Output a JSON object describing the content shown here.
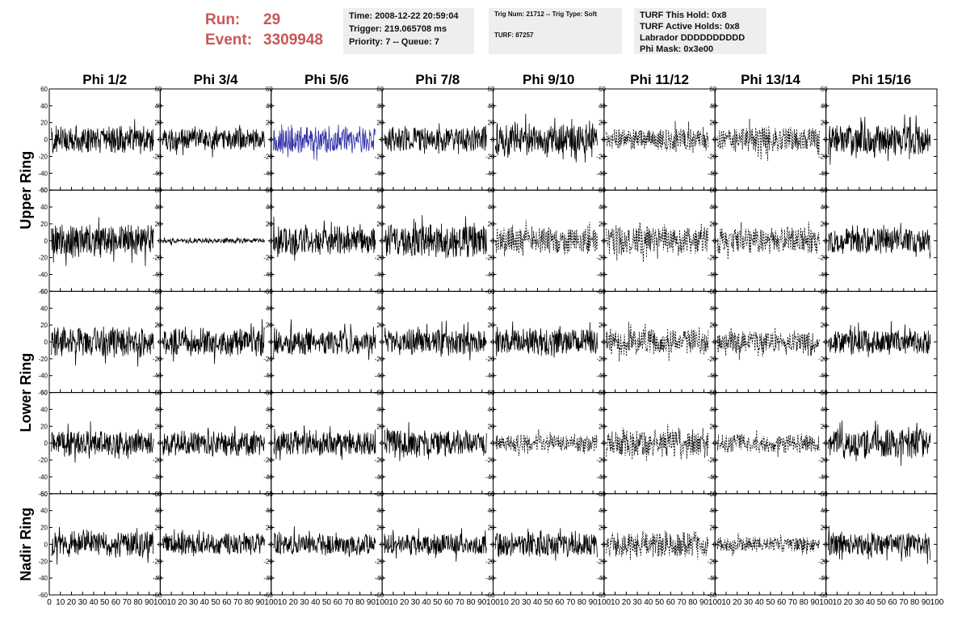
{
  "header": {
    "run_label": "Run:",
    "run_value": "29",
    "event_label": "Event:",
    "event_value": "3309948",
    "time_lines": [
      "Time: 2008-12-22 20:59:04",
      "Trigger: 219.065708 ms",
      "Priority: 7 -- Queue: 7"
    ],
    "trig_lines": [
      "Trig Num: 21712 -- Trig Type: Soft",
      "TURF: 87257"
    ],
    "turf_lines": [
      "TURF This Hold: 0x8",
      "TURF Active Holds: 0x8",
      "Labrador DDDDDDDDDD",
      "Phi Mask: 0x3e00"
    ],
    "colors": {
      "run_text": "#cc5555",
      "pane_bg": "#eeeeee",
      "highlight_trace": "#3333aa"
    }
  },
  "chart_data": {
    "type": "line",
    "columns": [
      "Phi 1/2",
      "Phi 3/4",
      "Phi 5/6",
      "Phi 7/8",
      "Phi 9/10",
      "Phi 11/12",
      "Phi 13/14",
      "Phi 15/16"
    ],
    "ring_labels": [
      "Upper Ring",
      "Lower Ring",
      "Nadir Ring"
    ],
    "subrows": 5,
    "xlim": [
      0,
      100
    ],
    "ylim": [
      -60,
      60
    ],
    "x_ticks": [
      0,
      10,
      20,
      30,
      40,
      50,
      60,
      70,
      80,
      90,
      100
    ],
    "y_ticks": [
      -60,
      -40,
      -20,
      0,
      20,
      40,
      60
    ],
    "highlighted_panel": {
      "row": 0,
      "col": 2,
      "color": "#3333aa"
    },
    "dashed_panels": [
      [
        0,
        5
      ],
      [
        0,
        6
      ],
      [
        1,
        4
      ],
      [
        1,
        5
      ],
      [
        1,
        6
      ],
      [
        2,
        5
      ],
      [
        2,
        6
      ],
      [
        3,
        4
      ],
      [
        3,
        5
      ],
      [
        3,
        6
      ],
      [
        4,
        5
      ],
      [
        4,
        6
      ]
    ],
    "amplitudes": [
      [
        15,
        12,
        15,
        14,
        18,
        12,
        14,
        16
      ],
      [
        18,
        3,
        16,
        18,
        14,
        16,
        14,
        14
      ],
      [
        16,
        15,
        14,
        14,
        15,
        14,
        12,
        14
      ],
      [
        14,
        14,
        14,
        15,
        10,
        16,
        10,
        16
      ],
      [
        14,
        12,
        12,
        12,
        14,
        14,
        8,
        13
      ]
    ]
  }
}
